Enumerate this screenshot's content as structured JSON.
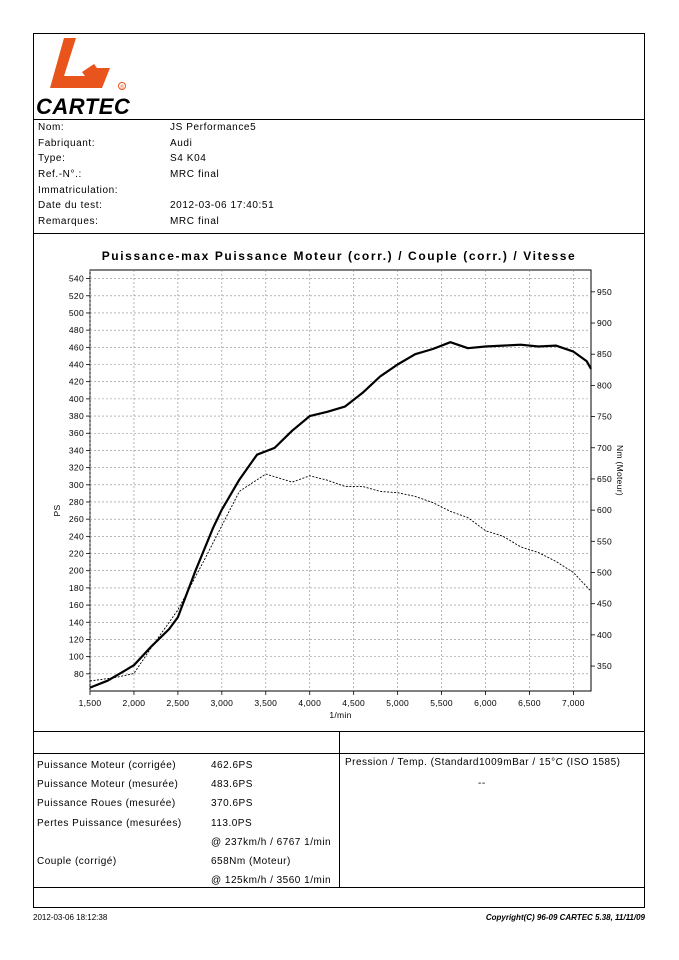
{
  "brand": {
    "name": "CARTEC",
    "registered": "®",
    "logo_color": "#e8541c"
  },
  "metadata": [
    {
      "key": "Nom:",
      "value": "JS Performance5"
    },
    {
      "key": "Fabriquant:",
      "value": "Audi"
    },
    {
      "key": "Type:",
      "value": "S4 K04"
    },
    {
      "key": "Ref.-N°.:",
      "value": "MRC final"
    },
    {
      "key": "Immatriculation:",
      "value": ""
    },
    {
      "key": "Date du test:",
      "value": "2012-03-06 17:40:51"
    },
    {
      "key": "Remarques:",
      "value": "MRC final"
    }
  ],
  "chart_data": {
    "type": "line",
    "title": "Puissance-max Puissance Moteur (corr.) / Couple (corr.) / Vitesse",
    "xlabel": "1/min",
    "ylabel": "PS",
    "y2label": "Nm (Moteur)",
    "xlim": [
      1500,
      7200
    ],
    "ylim": [
      60,
      550
    ],
    "y2lim": [
      310,
      985
    ],
    "x_ticks": [
      "1,500",
      "2,000",
      "2,500",
      "3,000",
      "3,500",
      "4,000",
      "4,500",
      "5,000",
      "5,500",
      "6,000",
      "6,500",
      "7,000"
    ],
    "x_tick_values": [
      1500,
      2000,
      2500,
      3000,
      3500,
      4000,
      4500,
      5000,
      5500,
      6000,
      6500,
      7000
    ],
    "y_ticks": [
      80,
      100,
      120,
      140,
      160,
      180,
      200,
      220,
      240,
      260,
      280,
      300,
      320,
      340,
      360,
      380,
      400,
      420,
      440,
      460,
      480,
      500,
      520,
      540
    ],
    "y2_ticks": [
      350,
      400,
      450,
      500,
      550,
      600,
      650,
      700,
      750,
      800,
      850,
      900,
      950
    ],
    "grid": true,
    "series": [
      {
        "axis": "left",
        "style": "solid",
        "x": [
          1500,
          1700,
          1900,
          2000,
          2200,
          2400,
          2500,
          2700,
          2900,
          3000,
          3200,
          3400,
          3600,
          3800,
          4000,
          4200,
          4400,
          4600,
          4800,
          5000,
          5200,
          5400,
          5600,
          5800,
          6000,
          6200,
          6400,
          6600,
          6800,
          7000,
          7150,
          7200
        ],
        "y": [
          64,
          72,
          84,
          90,
          112,
          132,
          146,
          200,
          250,
          271,
          306,
          335,
          343,
          363,
          380,
          385,
          391,
          407,
          426,
          440,
          452,
          458,
          466,
          459,
          461,
          462,
          463,
          461,
          462,
          455,
          444,
          435
        ]
      },
      {
        "axis": "right",
        "style": "dashed",
        "x": [
          1500,
          1800,
          2000,
          2200,
          2500,
          2800,
          3000,
          3200,
          3500,
          3800,
          4000,
          4200,
          4400,
          4600,
          4800,
          5000,
          5200,
          5400,
          5600,
          5800,
          6000,
          6200,
          6400,
          6600,
          6800,
          7000,
          7200
        ],
        "y": [
          326,
          332,
          338,
          380,
          440,
          520,
          575,
          630,
          658,
          645,
          655,
          648,
          638,
          638,
          630,
          628,
          622,
          612,
          598,
          588,
          567,
          558,
          541,
          532,
          518,
          500,
          470
        ]
      }
    ]
  },
  "results": {
    "left": [
      {
        "label": "Puissance Moteur (corrigée)",
        "value": "462.6PS"
      },
      {
        "label": "Puissance Moteur (mesurée)",
        "value": "483.6PS"
      },
      {
        "label": "Puissance Roues (mesurée)",
        "value": "370.6PS"
      },
      {
        "label": "Pertes Puissance (mesurées)",
        "value": "113.0PS"
      },
      {
        "label": "",
        "value": "@ 237km/h / 6767 1/min"
      },
      {
        "label": "Couple (corrigé)",
        "value": "658Nm (Moteur)"
      },
      {
        "label": "",
        "value": "@ 125km/h / 3560 1/min"
      }
    ],
    "right_title": "Pression / Temp. (Standard1009mBar / 15°C   (ISO 1585)",
    "right_value": "--"
  },
  "footer": {
    "left": "2012-03-06 18:12:38",
    "right": "Copyright(C) 96-09 CARTEC 5.38, 11/11/09"
  }
}
